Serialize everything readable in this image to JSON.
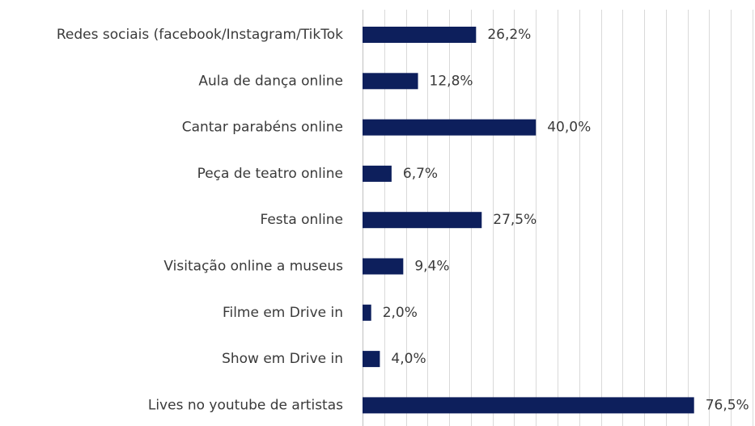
{
  "chart_data": {
    "type": "bar",
    "orientation": "horizontal",
    "categories": [
      "Redes sociais (facebook/Instagram/TikTok",
      "Aula de dança online",
      "Cantar parabéns online",
      "Peça de teatro online",
      "Festa online",
      "Visitação online a museus",
      "Filme em Drive in",
      "Show em Drive in",
      "Lives no youtube de artistas"
    ],
    "values": [
      26.2,
      12.8,
      40.0,
      6.7,
      27.5,
      9.4,
      2.0,
      4.0,
      76.5
    ],
    "data_labels": [
      "26,2%",
      "12,8%",
      "40,0%",
      "6,7%",
      "27,5%",
      "9,4%",
      "2,0%",
      "4,0%",
      "76,5%"
    ],
    "xlim": [
      0,
      90
    ],
    "grid": true,
    "legend": "none",
    "bar_color": "#0d1f5c"
  }
}
